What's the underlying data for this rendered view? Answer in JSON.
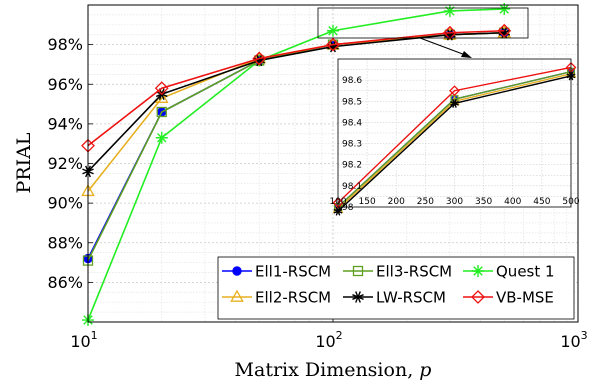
{
  "chart_data": {
    "type": "line",
    "xlabel": "Matrix Dimension, p",
    "ylabel": "PRIAL",
    "xscale": "log",
    "xlim": [
      10,
      1000
    ],
    "ylim": [
      84,
      100
    ],
    "x_ticks": [
      {
        "value": 10,
        "base": "10",
        "exp": "1"
      },
      {
        "value": 100,
        "base": "10",
        "exp": "2"
      },
      {
        "value": 1000,
        "base": "10",
        "exp": "3"
      }
    ],
    "y_ticks": [
      {
        "value": 86,
        "label": "86%"
      },
      {
        "value": 88,
        "label": "88%"
      },
      {
        "value": 90,
        "label": "90%"
      },
      {
        "value": 92,
        "label": "92%"
      },
      {
        "value": 94,
        "label": "94%"
      },
      {
        "value": 96,
        "label": "96%"
      },
      {
        "value": 98,
        "label": "98%"
      }
    ],
    "grid": true,
    "legend_position": "bottom-right",
    "x": [
      10,
      20,
      50,
      100,
      300,
      500
    ],
    "series": [
      {
        "name": "Ell1-RSCM",
        "color": "#0000ff",
        "marker": "dot",
        "values": [
          87.2,
          94.6,
          97.2,
          98.0,
          98.5,
          98.6
        ]
      },
      {
        "name": "Ell2-RSCM",
        "color": "#e8b020",
        "marker": "triangle",
        "values": [
          90.6,
          95.3,
          97.3,
          98.0,
          98.5,
          98.6
        ]
      },
      {
        "name": "Ell3-RSCM",
        "color": "#5fa022",
        "marker": "square",
        "values": [
          87.1,
          94.6,
          97.2,
          98.0,
          98.5,
          98.6
        ]
      },
      {
        "name": "LW-RSCM",
        "color": "#000000",
        "marker": "asterisk",
        "values": [
          91.6,
          95.5,
          97.2,
          97.9,
          98.5,
          98.6
        ]
      },
      {
        "name": "Quest 1",
        "color": "#22ee22",
        "marker": "star",
        "values": [
          84.1,
          93.3,
          97.2,
          98.7,
          99.7,
          99.8
        ]
      },
      {
        "name": "VB-MSE",
        "color": "#ee1111",
        "marker": "diamond",
        "values": [
          92.9,
          95.8,
          97.3,
          98.0,
          98.6,
          98.7
        ]
      }
    ],
    "inset": {
      "xlim": [
        100,
        500
      ],
      "ylim": [
        98.0,
        98.7
      ],
      "x_ticks": [
        100,
        150,
        200,
        250,
        300,
        350,
        400,
        450,
        500
      ],
      "y_ticks": [
        98,
        98.1,
        98.2,
        98.3,
        98.4,
        98.5,
        98.6
      ],
      "x": [
        100,
        300,
        500
      ],
      "series": [
        {
          "name": "Ell1-RSCM",
          "values": [
            98.0,
            98.51,
            98.64
          ]
        },
        {
          "name": "Ell2-RSCM",
          "values": [
            97.99,
            98.5,
            98.63
          ]
        },
        {
          "name": "Ell3-RSCM",
          "values": [
            98.0,
            98.51,
            98.64
          ]
        },
        {
          "name": "LW-RSCM",
          "values": [
            97.98,
            98.49,
            98.62
          ]
        },
        {
          "name": "VB-MSE",
          "values": [
            98.02,
            98.55,
            98.66
          ]
        }
      ]
    }
  }
}
